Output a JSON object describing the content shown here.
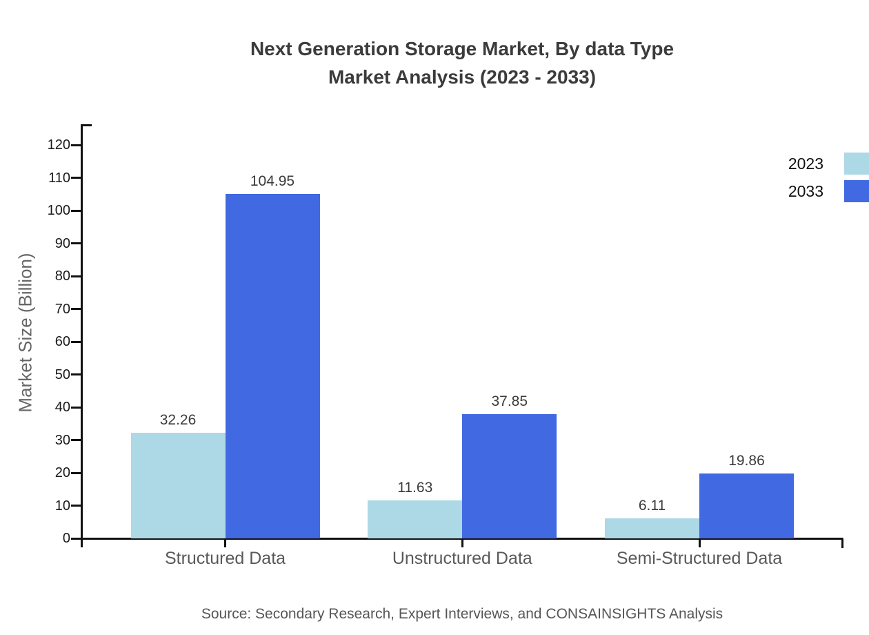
{
  "title": {
    "line1": "Next Generation Storage Market, By data Type",
    "line2": "Market Analysis (2023 - 2033)"
  },
  "source": "Source: Secondary Research, Expert Interviews, and CONSAINSIGHTS Analysis",
  "chart_data": {
    "type": "bar",
    "categories": [
      "Structured Data",
      "Unstructured Data",
      "Semi-Structured Data"
    ],
    "series": [
      {
        "name": "2023",
        "color": "#add8e6",
        "values": [
          32.26,
          11.63,
          6.11
        ]
      },
      {
        "name": "2033",
        "color": "#4169e1",
        "values": [
          104.95,
          37.85,
          19.86
        ]
      }
    ],
    "ylabel": "Market Size (Billion)",
    "ylim": [
      0,
      126
    ],
    "yticks": [
      0,
      10,
      20,
      30,
      40,
      50,
      60,
      70,
      80,
      90,
      100,
      110,
      120
    ],
    "grid": false,
    "legend_position": "top-right",
    "value_labels": true,
    "value_label_decimals": 2
  },
  "colors": {
    "series_2023": "#add8e6",
    "series_2033": "#4169e1",
    "axis": "#111111",
    "title_text": "#3b3b3b",
    "muted_text": "#595959",
    "background": "#ffffff"
  }
}
